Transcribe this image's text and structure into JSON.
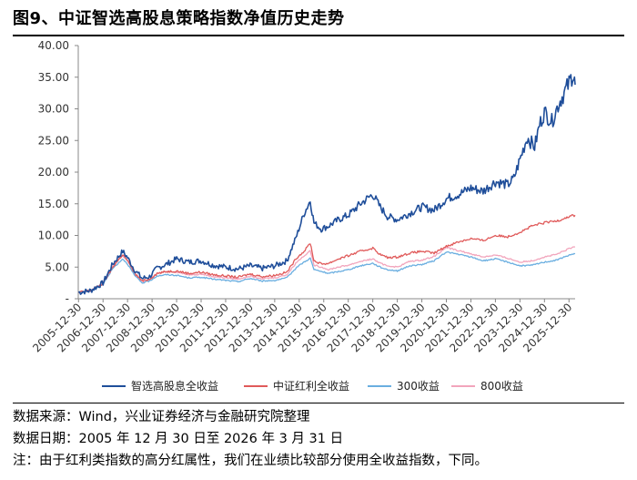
{
  "figure": {
    "title": "图9、中证智选高股息策略指数净值历史走势"
  },
  "notes": {
    "source": "数据来源：Wind，兴业证券经济与金融研究院整理",
    "date": "数据日期：2005 年 12 月 30 日至 2026 年 3 月 31 日",
    "remark": "注：由于红利类指数的高分红属性，我们在业绩比较部分使用全收益指数，下同。"
  },
  "chart_data": {
    "type": "line",
    "title": "",
    "xlabel": "",
    "ylabel": "",
    "ylim": [
      0,
      40
    ],
    "xlim": [
      2005.99,
      2026.25
    ],
    "yticks": [
      0,
      5,
      10,
      15,
      20,
      25,
      30,
      35,
      40
    ],
    "ytick_labels": [
      "-",
      "5.00",
      "10.00",
      "15.00",
      "20.00",
      "25.00",
      "30.00",
      "35.00",
      "40.00"
    ],
    "xtick_labels": [
      "2005-12-30",
      "2006-12-30",
      "2007-12-30",
      "2008-12-30",
      "2009-12-30",
      "2010-12-30",
      "2011-12-30",
      "2012-12-30",
      "2013-12-30",
      "2014-12-30",
      "2015-12-30",
      "2016-12-30",
      "2017-12-30",
      "2018-12-30",
      "2019-12-30",
      "2020-12-30",
      "2021-12-30",
      "2022-12-30",
      "2023-12-30",
      "2024-12-30",
      "2025-12-30"
    ],
    "legend_position": "bottom",
    "grid": false,
    "series": [
      {
        "name": "智选高股息全收益",
        "color": "#1f4e9a",
        "x": [
          2006.0,
          2006.5,
          2007.0,
          2007.4,
          2007.8,
          2008.0,
          2008.3,
          2008.6,
          2008.9,
          2009.2,
          2009.6,
          2010.0,
          2010.5,
          2011.0,
          2011.5,
          2012.0,
          2012.5,
          2013.0,
          2013.5,
          2014.0,
          2014.5,
          2014.9,
          2015.2,
          2015.45,
          2015.6,
          2015.9,
          2016.2,
          2016.6,
          2017.0,
          2017.5,
          2018.0,
          2018.3,
          2018.6,
          2019.0,
          2019.5,
          2020.0,
          2020.5,
          2021.0,
          2021.5,
          2022.0,
          2022.5,
          2023.0,
          2023.5,
          2023.75,
          2024.0,
          2024.3,
          2024.6,
          2024.8,
          2025.0,
          2025.3,
          2025.6,
          2025.8,
          2026.0,
          2026.15,
          2026.25
        ],
        "values": [
          1.0,
          1.3,
          2.5,
          5.5,
          7.5,
          6.5,
          4.5,
          3.2,
          3.5,
          4.8,
          5.5,
          6.3,
          5.8,
          6.0,
          5.3,
          5.0,
          4.7,
          5.2,
          4.8,
          5.2,
          6.0,
          10.0,
          13.5,
          15.5,
          12.0,
          11.0,
          11.5,
          12.5,
          13.2,
          15.0,
          16.5,
          14.5,
          13.0,
          12.5,
          13.5,
          14.5,
          14.0,
          15.8,
          16.5,
          17.5,
          17.0,
          18.5,
          18.0,
          19.0,
          22.0,
          25.5,
          24.0,
          27.5,
          29.5,
          28.0,
          31.0,
          32.5,
          34.0,
          35.5,
          33.8
        ]
      },
      {
        "name": "中证红利全收益",
        "color": "#e05a5a",
        "x": [
          2006.0,
          2006.5,
          2007.0,
          2007.4,
          2007.8,
          2008.0,
          2008.3,
          2008.6,
          2008.9,
          2009.2,
          2009.6,
          2010.0,
          2010.5,
          2011.0,
          2011.5,
          2012.0,
          2012.5,
          2013.0,
          2013.5,
          2014.0,
          2014.5,
          2014.9,
          2015.2,
          2015.45,
          2015.6,
          2015.9,
          2016.2,
          2016.6,
          2017.0,
          2017.5,
          2018.0,
          2018.3,
          2018.6,
          2019.0,
          2019.5,
          2020.0,
          2020.5,
          2021.0,
          2021.5,
          2022.0,
          2022.5,
          2023.0,
          2023.5,
          2024.0,
          2024.5,
          2025.0,
          2025.5,
          2026.0,
          2026.25
        ],
        "values": [
          1.0,
          1.3,
          2.4,
          5.0,
          7.0,
          6.0,
          4.0,
          2.8,
          3.1,
          4.0,
          4.3,
          4.4,
          4.0,
          4.2,
          3.8,
          3.6,
          3.4,
          3.9,
          3.5,
          3.7,
          4.2,
          6.5,
          7.5,
          8.8,
          6.0,
          5.5,
          5.6,
          6.3,
          6.8,
          7.5,
          8.0,
          7.0,
          6.5,
          6.6,
          7.2,
          7.5,
          7.2,
          8.3,
          9.0,
          9.5,
          9.2,
          10.0,
          9.8,
          10.5,
          11.5,
          12.0,
          12.3,
          13.0,
          13.2
        ]
      },
      {
        "name": "300收益",
        "color": "#6aaee0",
        "x": [
          2006.0,
          2006.5,
          2007.0,
          2007.4,
          2007.8,
          2008.0,
          2008.3,
          2008.6,
          2008.9,
          2009.2,
          2009.6,
          2010.0,
          2010.5,
          2011.0,
          2011.5,
          2012.0,
          2012.5,
          2013.0,
          2013.5,
          2014.0,
          2014.5,
          2014.9,
          2015.2,
          2015.45,
          2015.6,
          2015.9,
          2016.2,
          2016.6,
          2017.0,
          2017.5,
          2018.0,
          2018.3,
          2018.6,
          2019.0,
          2019.5,
          2020.0,
          2020.5,
          2021.0,
          2021.5,
          2022.0,
          2022.5,
          2023.0,
          2023.5,
          2024.0,
          2024.5,
          2025.0,
          2025.5,
          2026.0,
          2026.25
        ],
        "values": [
          1.0,
          1.2,
          2.3,
          4.8,
          6.3,
          5.5,
          3.6,
          2.5,
          2.8,
          3.6,
          3.8,
          3.7,
          3.3,
          3.4,
          3.1,
          2.9,
          2.7,
          3.2,
          2.8,
          2.9,
          3.3,
          5.0,
          5.8,
          6.4,
          4.6,
          4.3,
          4.0,
          4.3,
          4.6,
          5.2,
          5.6,
          5.0,
          4.6,
          4.4,
          5.2,
          5.4,
          6.0,
          7.4,
          7.0,
          6.6,
          6.0,
          6.3,
          5.8,
          5.2,
          5.3,
          5.8,
          6.1,
          6.9,
          7.1
        ]
      },
      {
        "name": "800收益",
        "color": "#f2a5bc",
        "x": [
          2006.0,
          2006.5,
          2007.0,
          2007.4,
          2007.8,
          2008.0,
          2008.3,
          2008.6,
          2008.9,
          2009.2,
          2009.6,
          2010.0,
          2010.5,
          2011.0,
          2011.5,
          2012.0,
          2012.5,
          2013.0,
          2013.5,
          2014.0,
          2014.5,
          2014.9,
          2015.2,
          2015.45,
          2015.6,
          2015.9,
          2016.2,
          2016.6,
          2017.0,
          2017.5,
          2018.0,
          2018.3,
          2018.6,
          2019.0,
          2019.5,
          2020.0,
          2020.5,
          2021.0,
          2021.5,
          2022.0,
          2022.5,
          2023.0,
          2023.5,
          2024.0,
          2024.5,
          2025.0,
          2025.5,
          2026.0,
          2026.25
        ],
        "values": [
          1.0,
          1.25,
          2.5,
          5.2,
          6.8,
          6.0,
          3.9,
          2.7,
          3.0,
          4.0,
          4.3,
          4.2,
          3.8,
          3.9,
          3.5,
          3.3,
          3.1,
          3.6,
          3.2,
          3.3,
          3.8,
          5.8,
          6.8,
          7.6,
          5.3,
          5.0,
          4.6,
          5.0,
          5.3,
          5.9,
          6.3,
          5.6,
          5.2,
          5.0,
          5.9,
          6.1,
          6.7,
          8.1,
          7.6,
          7.1,
          6.6,
          6.9,
          6.4,
          5.8,
          6.0,
          6.6,
          7.0,
          7.9,
          8.2
        ]
      }
    ]
  }
}
